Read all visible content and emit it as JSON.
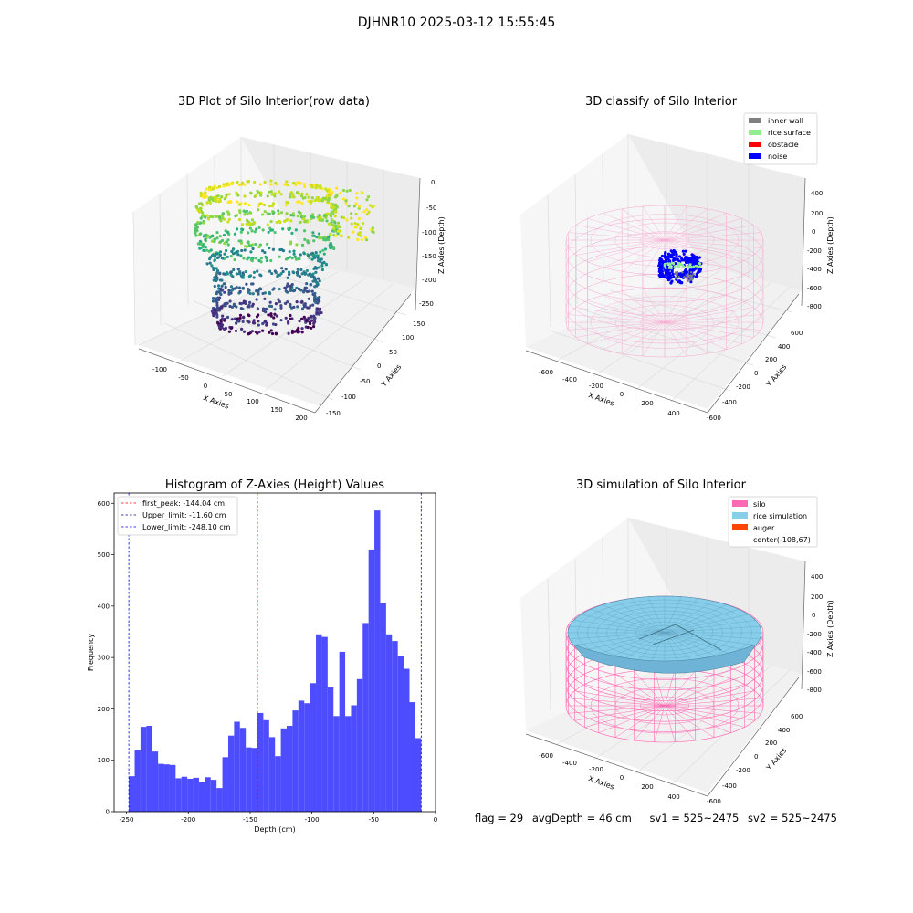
{
  "suptitle": "DJHNR10 2025-03-12 15:55:45",
  "panels": {
    "raw": {
      "title": "3D Plot of Silo Interior(row data)",
      "xlabel": "X Axies",
      "ylabel": "Y Axies",
      "zlabel": "Z Axies (Depth)",
      "xticks": [
        "-100",
        "-50",
        "0",
        "50",
        "100",
        "150",
        "200"
      ],
      "yticks": [
        "150",
        "100",
        "50",
        "0",
        "-50",
        "-100",
        "-150"
      ],
      "zticks": [
        "0",
        "-50",
        "-100",
        "-150",
        "-200",
        "-250"
      ]
    },
    "classify": {
      "title": "3D classify of Silo Interior",
      "xlabel": "X Axies",
      "ylabel": "Y Axies",
      "zlabel": "Z Axies (Depth)",
      "xticks": [
        "-600",
        "-400",
        "-200",
        "0",
        "200",
        "400"
      ],
      "yticks": [
        "600",
        "400",
        "200",
        "0",
        "-200",
        "-400",
        "-600"
      ],
      "zticks": [
        "400",
        "200",
        "0",
        "-200",
        "-400",
        "-600",
        "-800"
      ],
      "legend": [
        {
          "label": "inner wall",
          "color": "#808080"
        },
        {
          "label": "rice surface",
          "color": "#90ee90"
        },
        {
          "label": "obstacle",
          "color": "#ff0000"
        },
        {
          "label": "noise",
          "color": "#0000ff"
        }
      ]
    },
    "simulation": {
      "title": "3D simulation of Silo Interior",
      "xlabel": "X Axies",
      "ylabel": "Y Axies",
      "zlabel": "Z Axies (Depth)",
      "xticks": [
        "-600",
        "-400",
        "-200",
        "0",
        "200",
        "400"
      ],
      "yticks": [
        "600",
        "400",
        "200",
        "0",
        "-200",
        "-400",
        "-600"
      ],
      "zticks": [
        "400",
        "200",
        "0",
        "-200",
        "-400",
        "-600",
        "-800"
      ],
      "legend": [
        {
          "label": "silo",
          "color": "#ff69b4"
        },
        {
          "label": "rice simulation",
          "color": "#87ceeb"
        },
        {
          "label": "auger",
          "color": "#ff4500"
        },
        {
          "label": "center(-108,67)",
          "color": "none"
        }
      ]
    }
  },
  "footer": {
    "flag": "flag = 29",
    "avgdepth": "avgDepth = 46 cm",
    "sv1": "sv1 = 525~2475",
    "sv2": "sv2 = 525~2475"
  },
  "chart_data": [
    {
      "type": "bar",
      "title": "Histogram of Z-Axies (Height) Values",
      "xlabel": "Depth (cm)",
      "ylabel": "Frequency",
      "xlim": [
        -260,
        0
      ],
      "ylim": [
        0,
        620
      ],
      "xticks": [
        -250,
        -200,
        -150,
        -100,
        -50,
        0
      ],
      "yticks": [
        0,
        100,
        200,
        300,
        400,
        500,
        600
      ],
      "color": "#4d4dff",
      "bin_start": -248.1,
      "bin_width": 4.73,
      "values": [
        69,
        119,
        165,
        167,
        117,
        93,
        92,
        91,
        65,
        68,
        64,
        66,
        58,
        67,
        62,
        46,
        106,
        148,
        175,
        163,
        125,
        124,
        192,
        178,
        145,
        108,
        162,
        167,
        197,
        216,
        211,
        250,
        345,
        340,
        242,
        186,
        311,
        186,
        207,
        258,
        367,
        510,
        586,
        405,
        345,
        332,
        302,
        278,
        213,
        143
      ],
      "lines": [
        {
          "label": "first_peak: -144.04 cm",
          "x": -144.04,
          "color": "#ff0000"
        },
        {
          "label": "Upper_limit: -11.60 cm",
          "x": -11.6,
          "color": "#00008b"
        },
        {
          "label": "Lower_limit: -248.10 cm",
          "x": -248.1,
          "color": "#0000ff"
        }
      ],
      "legend_position": "top-left"
    }
  ]
}
